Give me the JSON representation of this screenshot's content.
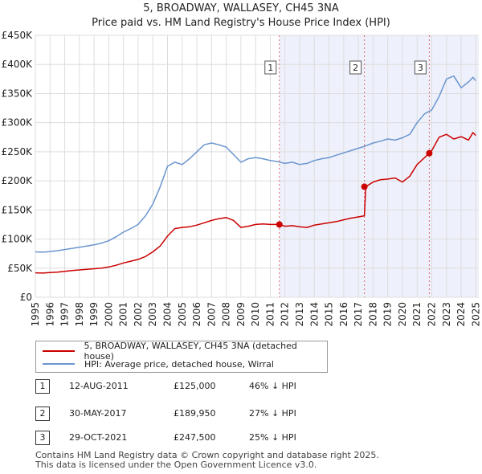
{
  "chart_data": {
    "type": "line",
    "title": "5, BROADWAY, WALLASEY, CH45 3NA",
    "subtitle": "Price paid vs. HM Land Registry's House Price Index (HPI)",
    "xlabel": "",
    "ylabel": "",
    "xlim": [
      1995,
      2025.2
    ],
    "ylim": [
      0,
      450000
    ],
    "x_ticks": [
      "1995",
      "1996",
      "1997",
      "1998",
      "1999",
      "2000",
      "2001",
      "2002",
      "2003",
      "2004",
      "2005",
      "2006",
      "2007",
      "2008",
      "2009",
      "2010",
      "2011",
      "2012",
      "2013",
      "2014",
      "2015",
      "2016",
      "2017",
      "2018",
      "2019",
      "2020",
      "2021",
      "2022",
      "2023",
      "2024",
      "2025"
    ],
    "y_ticks": [
      {
        "value": 0,
        "label": "£0"
      },
      {
        "value": 50000,
        "label": "£50K"
      },
      {
        "value": 100000,
        "label": "£100K"
      },
      {
        "value": 150000,
        "label": "£150K"
      },
      {
        "value": 200000,
        "label": "£200K"
      },
      {
        "value": 250000,
        "label": "£250K"
      },
      {
        "value": 300000,
        "label": "£300K"
      },
      {
        "value": 350000,
        "label": "£350K"
      },
      {
        "value": 400000,
        "label": "£400K"
      },
      {
        "value": 450000,
        "label": "£450K"
      }
    ],
    "grid": true,
    "series": [
      {
        "name": "5, BROADWAY, WALLASEY, CH45 3NA (detached house)",
        "color": "#cc0000",
        "x": [
          1995.0,
          1995.5,
          1996.0,
          1996.5,
          1997.0,
          1997.5,
          1998.0,
          1998.5,
          1999.0,
          1999.5,
          2000.0,
          2000.5,
          2001.0,
          2001.5,
          2002.0,
          2002.5,
          2003.0,
          2003.5,
          2004.0,
          2004.5,
          2005.0,
          2005.5,
          2006.0,
          2006.5,
          2007.0,
          2007.5,
          2008.0,
          2008.5,
          2009.0,
          2009.5,
          2010.0,
          2010.5,
          2011.0,
          2011.62,
          2012.0,
          2012.5,
          2013.0,
          2013.5,
          2014.0,
          2014.5,
          2015.0,
          2015.5,
          2016.0,
          2016.5,
          2017.0,
          2017.41,
          2017.5,
          2018.0,
          2018.5,
          2019.0,
          2019.5,
          2020.0,
          2020.5,
          2021.0,
          2021.83,
          2022.0,
          2022.5,
          2023.0,
          2023.5,
          2024.0,
          2024.5,
          2024.8,
          2025.0
        ],
        "values": [
          42000,
          41500,
          42500,
          43000,
          44500,
          46000,
          47000,
          48000,
          49000,
          50000,
          52000,
          55000,
          59000,
          62000,
          65000,
          70000,
          78000,
          88000,
          105000,
          118000,
          120000,
          121000,
          124000,
          128000,
          132000,
          135000,
          137000,
          132000,
          120000,
          122000,
          125000,
          126000,
          125000,
          125000,
          122000,
          123000,
          121000,
          120000,
          124000,
          126000,
          128000,
          130000,
          133000,
          136000,
          138000,
          140000,
          189950,
          198000,
          202000,
          203000,
          205000,
          198000,
          208000,
          228000,
          247500,
          252000,
          275000,
          280000,
          272000,
          276000,
          270000,
          283000,
          278000
        ]
      },
      {
        "name": "HPI: Average price, detached house, Wirral",
        "color": "#6a96cf",
        "x": [
          1995.0,
          1995.5,
          1996.0,
          1996.5,
          1997.0,
          1997.5,
          1998.0,
          1998.5,
          1999.0,
          1999.5,
          2000.0,
          2000.5,
          2001.0,
          2001.5,
          2002.0,
          2002.5,
          2003.0,
          2003.5,
          2004.0,
          2004.5,
          2005.0,
          2005.5,
          2006.0,
          2006.5,
          2007.0,
          2007.5,
          2008.0,
          2008.5,
          2009.0,
          2009.5,
          2010.0,
          2010.5,
          2011.0,
          2011.5,
          2012.0,
          2012.5,
          2013.0,
          2013.5,
          2014.0,
          2014.5,
          2015.0,
          2015.5,
          2016.0,
          2016.5,
          2017.0,
          2017.5,
          2018.0,
          2018.5,
          2019.0,
          2019.5,
          2020.0,
          2020.5,
          2021.0,
          2021.5,
          2022.0,
          2022.5,
          2023.0,
          2023.5,
          2024.0,
          2024.5,
          2024.8,
          2025.0
        ],
        "values": [
          78000,
          77500,
          78500,
          80000,
          82000,
          84000,
          86000,
          88000,
          90000,
          93000,
          97000,
          104000,
          112000,
          118000,
          125000,
          140000,
          160000,
          190000,
          225000,
          232000,
          228000,
          238000,
          250000,
          262000,
          265000,
          262000,
          258000,
          245000,
          232000,
          238000,
          240000,
          238000,
          235000,
          233000,
          230000,
          232000,
          228000,
          230000,
          235000,
          238000,
          240000,
          244000,
          248000,
          252000,
          256000,
          260000,
          265000,
          268000,
          272000,
          270000,
          274000,
          280000,
          300000,
          315000,
          322000,
          345000,
          375000,
          380000,
          360000,
          370000,
          378000,
          372000
        ]
      }
    ],
    "sales": [
      {
        "number": "1",
        "x": 2011.62,
        "price": 125000
      },
      {
        "number": "2",
        "x": 2017.41,
        "price": 189950
      },
      {
        "number": "3",
        "x": 2021.83,
        "price": 247500
      }
    ]
  },
  "legend": {
    "items": [
      {
        "label": "5, BROADWAY, WALLASEY, CH45 3NA (detached house)",
        "color": "#cc0000"
      },
      {
        "label": "HPI: Average price, detached house, Wirral",
        "color": "#6a96cf"
      }
    ]
  },
  "sales_table": [
    {
      "number": "1",
      "date": "12-AUG-2011",
      "price": "£125,000",
      "hpi": "46% ↓ HPI"
    },
    {
      "number": "2",
      "date": "30-MAY-2017",
      "price": "£189,950",
      "hpi": "27% ↓ HPI"
    },
    {
      "number": "3",
      "date": "29-OCT-2021",
      "price": "£247,500",
      "hpi": "25% ↓ HPI"
    }
  ],
  "footer": {
    "line1": "Contains HM Land Registry data © Crown copyright and database right 2025.",
    "line2": "This data is licensed under the Open Government Licence v3.0."
  }
}
